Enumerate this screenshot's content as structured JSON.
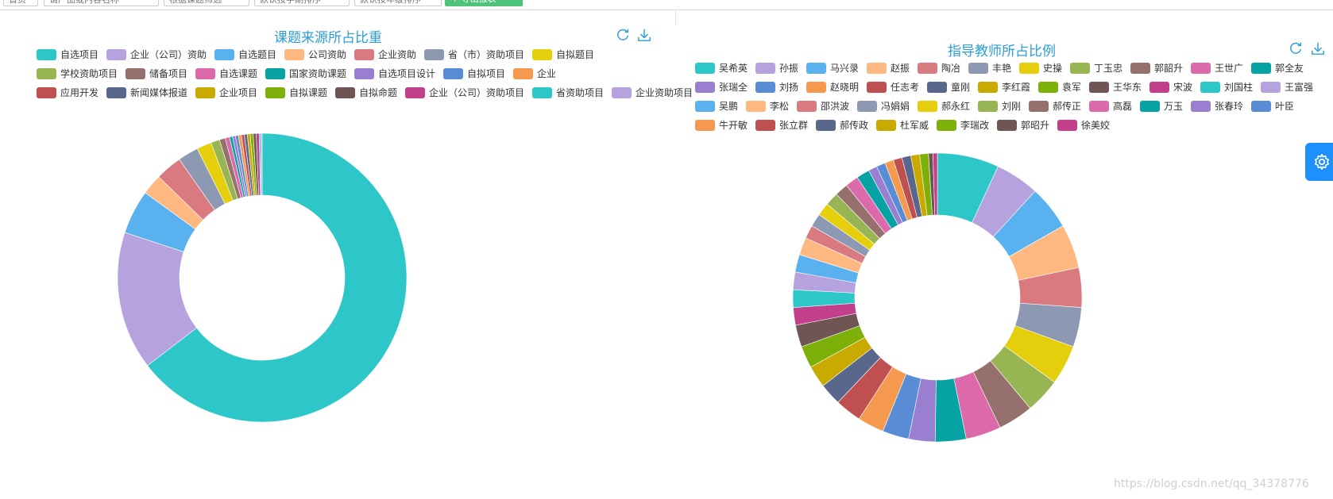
{
  "toolbar": {
    "items": [
      "首页",
      "请产品或内容名称",
      "根据课题筛选",
      "默认按学期排序",
      "默认按年级排序"
    ],
    "button_label": "+ 导出报表"
  },
  "watermark": "https://blog.csdn.net/qq_34378776",
  "chart_data": [
    {
      "type": "pie",
      "variant": "donut",
      "title": "课题来源所占比重",
      "legend_position": "top",
      "categories": [
        "自选项目",
        "企业（公司）资助",
        "自选题目",
        "公司资助",
        "企业资助",
        "省（市）资助项目",
        "自拟题目",
        "学校资助项目",
        "储备项目",
        "自选课题",
        "国家资助课题",
        "自选项目设计",
        "自拟项目",
        "企业",
        "应用开发",
        "新闻媒体报道",
        "企业项目",
        "自拟课题",
        "自拟命题",
        "企业（公司）资助项目",
        "省资助项目",
        "企业资助项目"
      ],
      "values": [
        196,
        47,
        15,
        7,
        9,
        7,
        5,
        3,
        2,
        1.5,
        1,
        1,
        1,
        1,
        1,
        1,
        1,
        1,
        1,
        1,
        0.5,
        0.5
      ],
      "colors": [
        "#2ec7c9",
        "#b6a2de",
        "#5ab1ef",
        "#ffb980",
        "#d87a80",
        "#8d98b3",
        "#e5cf0d",
        "#97b552",
        "#95706d",
        "#dc69aa",
        "#07a2a4",
        "#9a7fd1",
        "#588dd5",
        "#f5994e",
        "#c05050",
        "#59678c",
        "#c9ab00",
        "#7eb00a",
        "#6f5553",
        "#c14089",
        "#2ec7c9",
        "#b6a2de"
      ]
    },
    {
      "type": "pie",
      "variant": "donut",
      "title": "指导教师所占比例",
      "legend_position": "top",
      "categories": [
        "吴希英",
        "孙振",
        "马兴录",
        "赵振",
        "陶冶",
        "丰艳",
        "史操",
        "丁玉忠",
        "郭韶升",
        "王世广",
        "郭全友",
        "张瑞全",
        "刘扬",
        "赵晓明",
        "任志考",
        "童刚",
        "李红霞",
        "袁军",
        "王华东",
        "宋波",
        "刘国柱",
        "王富强",
        "吴鹏",
        "李松",
        "邵洪波",
        "冯娟娟",
        "郝永红",
        "刘刚",
        "郝传正",
        "高磊",
        "万玉",
        "张春玲",
        "叶臣",
        "牛开敏",
        "张立群",
        "郝传政",
        "杜军威",
        "李瑞改",
        "郭昭升",
        "徐美姣"
      ],
      "values": [
        14,
        10,
        10,
        10,
        9,
        9,
        9,
        8,
        8,
        8,
        7,
        6,
        6,
        6,
        6,
        5,
        5,
        5,
        5,
        4,
        4,
        4,
        4,
        4,
        3,
        3,
        3,
        3,
        3,
        3,
        3,
        2,
        2,
        2,
        2,
        2,
        2,
        2,
        1,
        1
      ],
      "colors": [
        "#2ec7c9",
        "#b6a2de",
        "#5ab1ef",
        "#ffb980",
        "#d87a80",
        "#8d98b3",
        "#e5cf0d",
        "#97b552",
        "#95706d",
        "#dc69aa",
        "#07a2a4",
        "#9a7fd1",
        "#588dd5",
        "#f5994e",
        "#c05050",
        "#59678c",
        "#c9ab00",
        "#7eb00a",
        "#6f5553",
        "#c14089",
        "#2ec7c9",
        "#b6a2de",
        "#5ab1ef",
        "#ffb980",
        "#d87a80",
        "#8d98b3",
        "#e5cf0d",
        "#97b552",
        "#95706d",
        "#dc69aa",
        "#07a2a4",
        "#9a7fd1",
        "#588dd5",
        "#f5994e",
        "#c05050",
        "#59678c",
        "#c9ab00",
        "#7eb00a",
        "#6f5553",
        "#c14089"
      ]
    }
  ],
  "icons": {
    "refresh": "refresh-icon",
    "download": "download-icon",
    "settings": "gear-icon"
  }
}
